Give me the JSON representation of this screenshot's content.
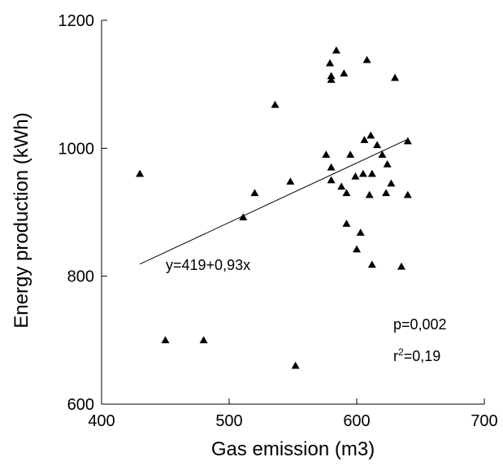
{
  "chart_data": {
    "type": "scatter",
    "title": "",
    "xlabel": "Gas emission  (m3)",
    "ylabel": "Energy production (kWh)",
    "xlim": [
      400,
      700
    ],
    "ylim": [
      600,
      1200
    ],
    "xticks": [
      400,
      500,
      600,
      700
    ],
    "yticks": [
      600,
      800,
      1000,
      1200
    ],
    "grid": false,
    "marker": "triangle",
    "color": "#000000",
    "points": [
      {
        "x": 430,
        "y": 960
      },
      {
        "x": 450,
        "y": 700
      },
      {
        "x": 480,
        "y": 700
      },
      {
        "x": 511,
        "y": 892
      },
      {
        "x": 520,
        "y": 930
      },
      {
        "x": 536,
        "y": 1068
      },
      {
        "x": 548,
        "y": 948
      },
      {
        "x": 552,
        "y": 660
      },
      {
        "x": 576,
        "y": 990
      },
      {
        "x": 579,
        "y": 1133
      },
      {
        "x": 580,
        "y": 1113
      },
      {
        "x": 580,
        "y": 1107
      },
      {
        "x": 580,
        "y": 970
      },
      {
        "x": 580,
        "y": 950
      },
      {
        "x": 584,
        "y": 1153
      },
      {
        "x": 588,
        "y": 940
      },
      {
        "x": 590,
        "y": 1117
      },
      {
        "x": 592,
        "y": 930
      },
      {
        "x": 592,
        "y": 882
      },
      {
        "x": 595,
        "y": 990
      },
      {
        "x": 599,
        "y": 956
      },
      {
        "x": 600,
        "y": 842
      },
      {
        "x": 603,
        "y": 868
      },
      {
        "x": 605,
        "y": 960
      },
      {
        "x": 606,
        "y": 1013
      },
      {
        "x": 608,
        "y": 1138
      },
      {
        "x": 610,
        "y": 927
      },
      {
        "x": 611,
        "y": 1020
      },
      {
        "x": 612,
        "y": 818
      },
      {
        "x": 612,
        "y": 960
      },
      {
        "x": 616,
        "y": 1005
      },
      {
        "x": 620,
        "y": 990
      },
      {
        "x": 623,
        "y": 930
      },
      {
        "x": 624,
        "y": 975
      },
      {
        "x": 627,
        "y": 945
      },
      {
        "x": 630,
        "y": 1110
      },
      {
        "x": 635,
        "y": 815
      },
      {
        "x": 640,
        "y": 1011
      },
      {
        "x": 640,
        "y": 927
      }
    ],
    "regression": {
      "intercept": 419,
      "slope": 0.93,
      "x_range": [
        430,
        640
      ],
      "label": "y=419+0,93x"
    },
    "annotations": {
      "p_value": "p=0,002",
      "r2_prefix": "r",
      "r2_sup": "2",
      "r2_value": "=0,19"
    }
  }
}
